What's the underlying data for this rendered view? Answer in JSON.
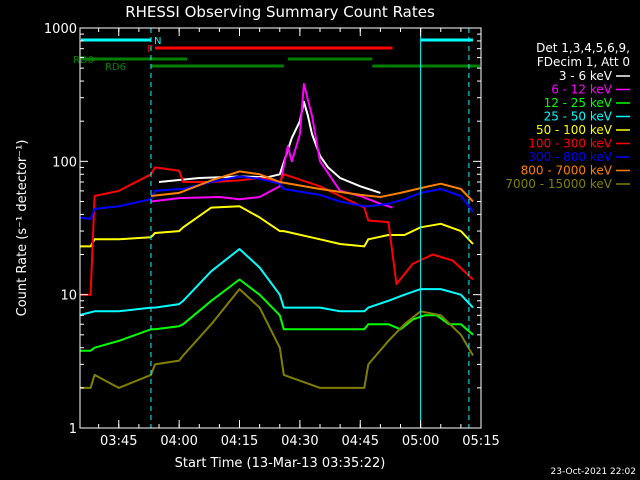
{
  "chart_data": {
    "type": "line",
    "title": "RHESSI Observing Summary Count Rates",
    "xlabel": "Start Time (13-Mar-13 03:35:22)",
    "ylabel": "Count Rate (s⁻¹ detector⁻¹)",
    "ylog": true,
    "ylim": [
      1,
      1000
    ],
    "xlim": [
      "03:35:22",
      "05:15:00"
    ],
    "x_ticks": [
      "03:45",
      "04:00",
      "04:15",
      "04:30",
      "04:45",
      "05:00",
      "05:15"
    ],
    "y_ticks": [
      "1",
      "10",
      "100",
      "1000"
    ],
    "grid": false,
    "legend_position": "right",
    "legend_header": [
      "Det 1,3,4,5,6,9,",
      "FDecim 1, Att 0"
    ],
    "timestamp": "23-Oct-2021 22:02",
    "flag_bars": [
      {
        "label": "N",
        "color": "#00ffff",
        "intervals": [
          [
            "03:35",
            "03:53"
          ],
          [
            "05:00",
            "05:13"
          ]
        ]
      },
      {
        "label": "F",
        "color": "#ff0000",
        "intervals": [
          [
            "03:54",
            "04:53"
          ]
        ]
      },
      {
        "label": "RD0",
        "color": "#008000",
        "intervals": [
          [
            "03:35",
            "04:02"
          ],
          [
            "04:27",
            "04:48"
          ]
        ]
      },
      {
        "label": "RD6",
        "color": "#008000",
        "intervals": [
          [
            "03:53",
            "04:26"
          ],
          [
            "04:48",
            "05:15"
          ]
        ]
      }
    ],
    "vertical_markers": [
      {
        "color": "#00ffff",
        "style": "dashed",
        "x": "03:53"
      },
      {
        "color": "#00ffff",
        "style": "solid",
        "x": "05:00"
      },
      {
        "color": "#00ffff",
        "style": "dashed",
        "x": "05:12"
      }
    ],
    "series": [
      {
        "name": "3 - 6 keV",
        "color": "#ffffff",
        "x": [
          "03:35",
          "03:40",
          "03:47",
          "03:52",
          "03:55",
          "04:05",
          "04:15",
          "04:22",
          "04:25",
          "04:28",
          "04:30",
          "04:31",
          "04:32",
          "04:33",
          "04:35",
          "04:37",
          "04:40",
          "04:45",
          "04:50"
        ],
        "values": [
          null,
          null,
          null,
          null,
          70,
          75,
          77,
          76,
          80,
          150,
          200,
          280,
          220,
          160,
          110,
          90,
          75,
          65,
          58
        ]
      },
      {
        "name": "6 - 12 keV",
        "color": "#ff00ff",
        "x": [
          "03:53",
          "04:00",
          "04:10",
          "04:15",
          "04:20",
          "04:25",
          "04:27",
          "04:28",
          "04:30",
          "04:31",
          "04:32",
          "04:33",
          "04:35",
          "04:40",
          "04:45",
          "04:50",
          "04:53"
        ],
        "values": [
          50,
          53,
          54,
          52,
          54,
          65,
          130,
          100,
          160,
          380,
          290,
          220,
          100,
          60,
          55,
          48,
          45
        ]
      },
      {
        "name": "12 - 25 keV",
        "color": "#00ff00",
        "x": [
          "03:35",
          "03:38",
          "03:39",
          "03:45",
          "03:53",
          "03:54",
          "04:00",
          "04:01",
          "04:08",
          "04:15",
          "04:20",
          "04:25",
          "04:26",
          "04:35",
          "04:40",
          "04:46",
          "04:47",
          "04:52",
          "04:55",
          "04:58",
          "05:01",
          "05:04",
          "05:07",
          "05:10",
          "05:13"
        ],
        "values": [
          3.8,
          3.8,
          4,
          4.5,
          5.5,
          5.5,
          5.8,
          6,
          9,
          13,
          10,
          7,
          5.5,
          5.5,
          5.5,
          5.5,
          6,
          6,
          5.5,
          6.5,
          7,
          7,
          6,
          6,
          5
        ]
      },
      {
        "name": "25 - 50 keV",
        "color": "#00ffff",
        "x": [
          "03:35",
          "03:39",
          "03:45",
          "03:53",
          "03:54",
          "04:00",
          "04:01",
          "04:08",
          "04:15",
          "04:20",
          "04:25",
          "04:26",
          "04:35",
          "04:40",
          "04:46",
          "04:47",
          "04:52",
          "04:56",
          "05:00",
          "05:05",
          "05:10",
          "05:13"
        ],
        "values": [
          7,
          7.5,
          7.5,
          8,
          8,
          8.5,
          9,
          15,
          22,
          16,
          10,
          8,
          8,
          7.5,
          7.5,
          8,
          9,
          10,
          11,
          11,
          10,
          8
        ]
      },
      {
        "name": "50 - 100 keV",
        "color": "#ffff00",
        "x": [
          "03:35",
          "03:38",
          "03:39",
          "03:45",
          "03:53",
          "03:54",
          "04:00",
          "04:01",
          "04:08",
          "04:15",
          "04:20",
          "04:25",
          "04:26",
          "04:35",
          "04:40",
          "04:46",
          "04:47",
          "04:52",
          "04:56",
          "05:00",
          "05:05",
          "05:10",
          "05:13"
        ],
        "values": [
          23,
          23,
          26,
          26,
          27,
          29,
          30,
          32,
          45,
          46,
          38,
          30,
          30,
          26,
          24,
          23,
          26,
          28,
          28,
          32,
          34,
          30,
          24
        ]
      },
      {
        "name": "100 - 300 keV",
        "color": "#ff0000",
        "x": [
          "03:35",
          "03:38",
          "03:39",
          "03:45",
          "03:53",
          "03:54",
          "04:00",
          "04:01",
          "04:08",
          "04:15",
          "04:20",
          "04:25",
          "04:26",
          "04:35",
          "04:40",
          "04:46",
          "04:47",
          "04:52",
          "04:54",
          "04:58",
          "05:03",
          "05:08",
          "05:13"
        ],
        "values": [
          10,
          10,
          55,
          60,
          80,
          90,
          85,
          70,
          70,
          72,
          75,
          70,
          80,
          65,
          55,
          45,
          36,
          35,
          12,
          17,
          20,
          18,
          13
        ]
      },
      {
        "name": "300 - 800 keV",
        "color": "#0000ff",
        "x": [
          "03:35",
          "03:38",
          "03:39",
          "03:45",
          "03:53",
          "03:54",
          "04:00",
          "04:01",
          "04:08",
          "04:15",
          "04:20",
          "04:25",
          "04:26",
          "04:35",
          "04:40",
          "04:46",
          "04:47",
          "04:52",
          "04:56",
          "05:00",
          "05:05",
          "05:10",
          "05:13"
        ],
        "values": [
          38,
          37,
          44,
          46,
          52,
          60,
          62,
          62,
          70,
          77,
          74,
          68,
          62,
          56,
          50,
          46,
          46,
          48,
          52,
          58,
          62,
          55,
          42
        ]
      },
      {
        "name": "800 - 7000 keV",
        "color": "#ff8000",
        "x": [
          "03:53",
          "04:00",
          "04:08",
          "04:15",
          "04:20",
          "04:25",
          "04:35",
          "04:45",
          "04:50",
          "04:55",
          "05:00",
          "05:05",
          "05:10",
          "05:13"
        ],
        "values": [
          55,
          58,
          72,
          84,
          80,
          70,
          62,
          56,
          54,
          58,
          63,
          68,
          62,
          50
        ]
      },
      {
        "name": "7000 - 15000 keV",
        "color": "#808000",
        "x": [
          "03:35",
          "03:38",
          "03:39",
          "03:45",
          "03:53",
          "03:54",
          "04:00",
          "04:01",
          "04:08",
          "04:15",
          "04:20",
          "04:25",
          "04:26",
          "04:35",
          "04:40",
          "04:46",
          "04:47",
          "04:52",
          "04:56",
          "05:00",
          "05:05",
          "05:10",
          "05:13"
        ],
        "values": [
          2,
          2,
          2.5,
          2,
          2.5,
          3,
          3.2,
          3.5,
          6,
          11,
          8,
          4,
          2.5,
          2,
          2,
          2,
          3,
          4.5,
          6,
          7.5,
          7,
          5,
          3.5
        ]
      }
    ]
  }
}
